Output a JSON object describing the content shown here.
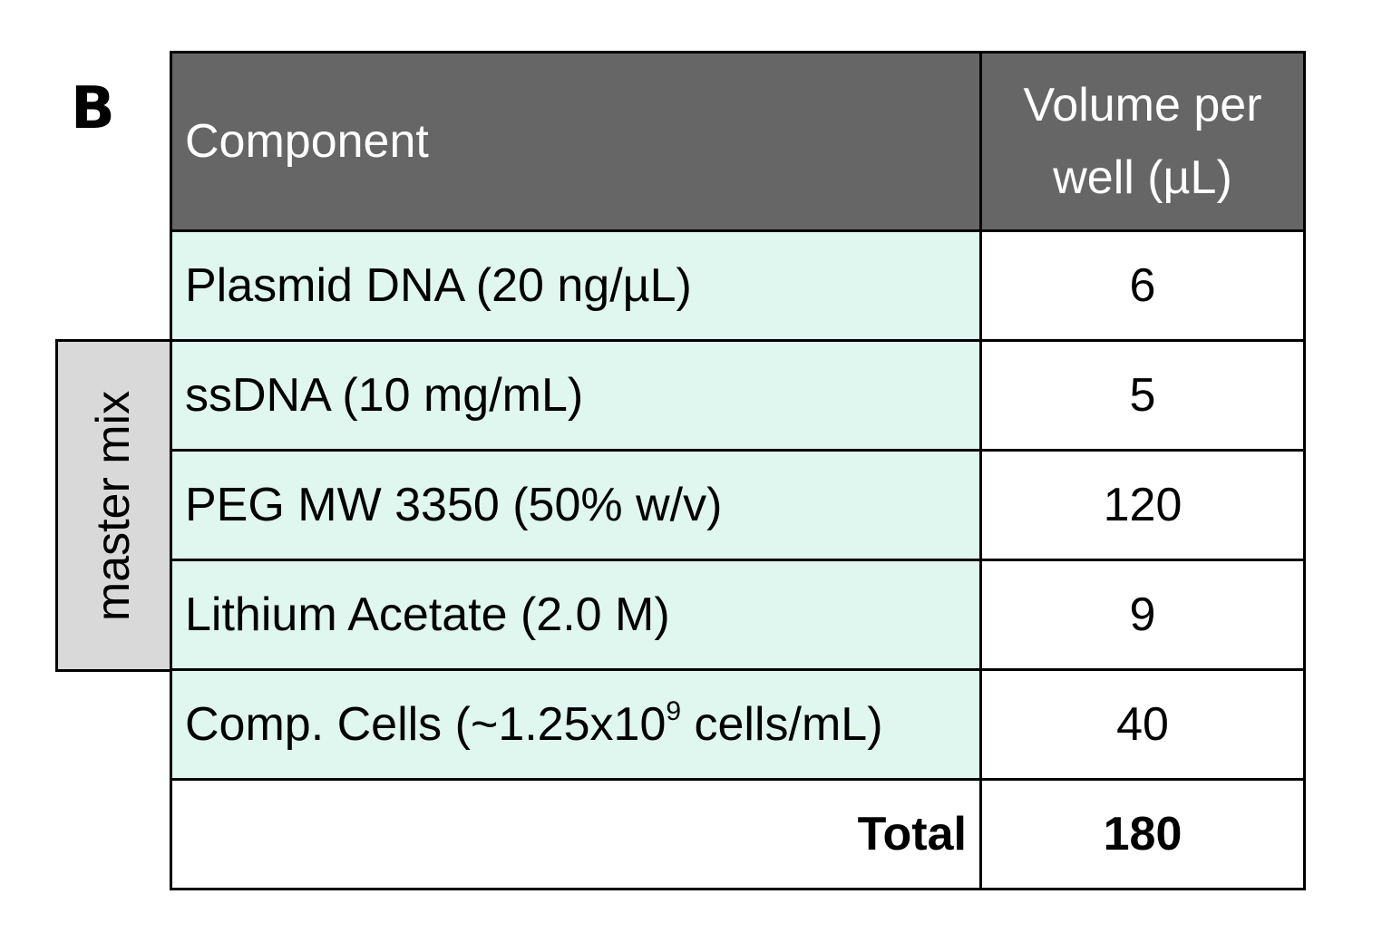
{
  "panel_label": "B",
  "side_label": "master mix",
  "table": {
    "headers": [
      "Component",
      "Volume per well (µL)"
    ],
    "rows": [
      {
        "component": "Plasmid DNA (20 ng/µL)",
        "volume": "6"
      },
      {
        "component": "ssDNA (10 mg/mL)",
        "volume": "5"
      },
      {
        "component": "PEG MW 3350 (50% w/v)",
        "volume": "120"
      },
      {
        "component": "Lithium Acetate (2.0 M)",
        "volume": "9"
      },
      {
        "component_prefix": "Comp. Cells (~1.25x10",
        "component_sup": "9",
        "component_suffix": " cells/mL)",
        "volume": "40"
      }
    ],
    "total_label": "Total",
    "total_value": "180"
  },
  "colors": {
    "header_bg": "#666666",
    "component_cell_bg": "#dff7ef",
    "master_mix_bg": "#d9d9d9"
  }
}
